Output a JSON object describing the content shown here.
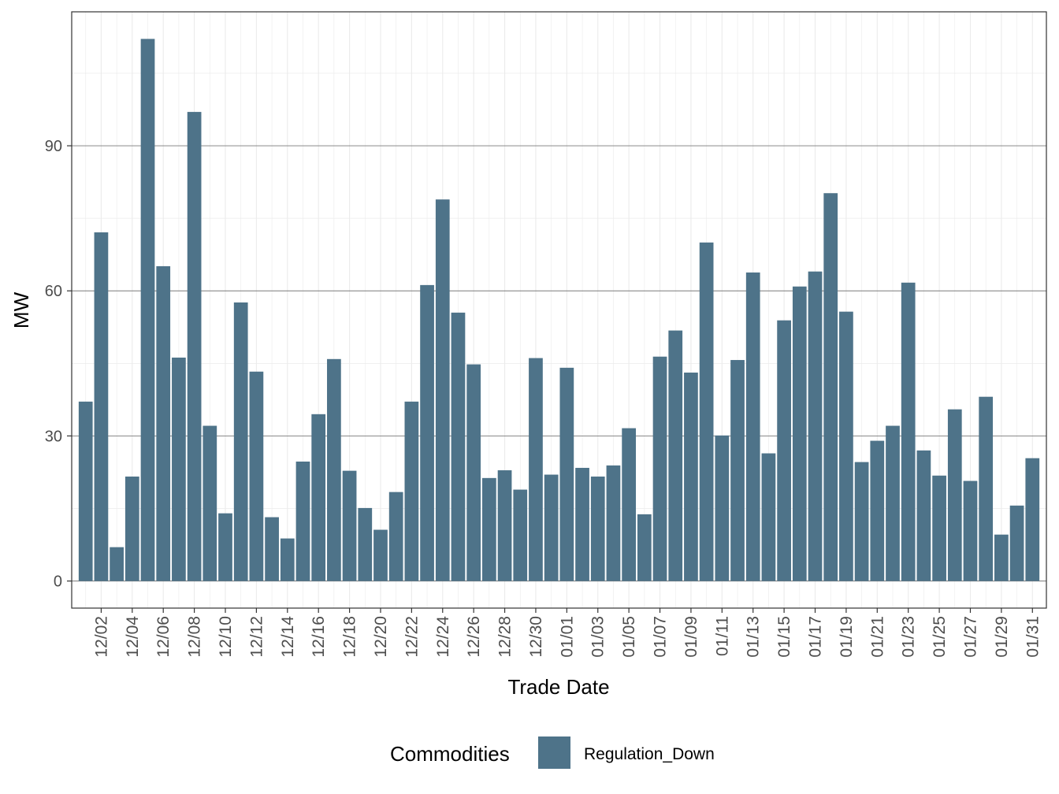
{
  "chart_data": {
    "type": "bar",
    "title": "",
    "xlabel": "Trade Date",
    "ylabel": "MW",
    "ylim": [
      -5.6,
      117.7
    ],
    "y_ticks": [
      0,
      30,
      60,
      90
    ],
    "grid": true,
    "legend_position": "bottom",
    "legend_title": "Commodities",
    "bar_color": "#4e7389",
    "x_tick_labels": [
      "12/02",
      "12/04",
      "12/06",
      "12/08",
      "12/10",
      "12/12",
      "12/14",
      "12/16",
      "12/18",
      "12/20",
      "12/22",
      "12/24",
      "12/26",
      "12/28",
      "12/30",
      "01/01",
      "01/03",
      "01/05",
      "01/07",
      "01/09",
      "01/11",
      "01/13",
      "01/15",
      "01/17",
      "01/19",
      "01/21",
      "01/23",
      "01/25",
      "01/27",
      "01/29",
      "01/31"
    ],
    "categories": [
      "12/01",
      "12/02",
      "12/03",
      "12/04",
      "12/05",
      "12/06",
      "12/07",
      "12/08",
      "12/09",
      "12/10",
      "12/11",
      "12/12",
      "12/13",
      "12/14",
      "12/15",
      "12/16",
      "12/17",
      "12/18",
      "12/19",
      "12/20",
      "12/21",
      "12/22",
      "12/23",
      "12/24",
      "12/25",
      "12/26",
      "12/27",
      "12/28",
      "12/29",
      "12/30",
      "12/31",
      "01/01",
      "01/02",
      "01/03",
      "01/04",
      "01/05",
      "01/06",
      "01/07",
      "01/08",
      "01/09",
      "01/10",
      "01/11",
      "01/12",
      "01/13",
      "01/14",
      "01/15",
      "01/16",
      "01/17",
      "01/18",
      "01/19",
      "01/20",
      "01/21",
      "01/22",
      "01/23",
      "01/24",
      "01/25",
      "01/26",
      "01/27",
      "01/28",
      "01/29",
      "01/30",
      "01/31"
    ],
    "series": [
      {
        "name": "Regulation_Down",
        "values": [
          37.1,
          72.1,
          7.0,
          21.6,
          112.1,
          65.1,
          46.2,
          97.0,
          32.1,
          14.0,
          57.6,
          43.3,
          13.2,
          8.8,
          24.7,
          34.5,
          45.9,
          22.8,
          15.1,
          10.6,
          18.4,
          37.1,
          61.2,
          78.9,
          55.5,
          44.8,
          21.3,
          22.9,
          18.9,
          46.1,
          22.0,
          44.1,
          23.4,
          21.6,
          23.9,
          31.6,
          13.8,
          46.4,
          51.8,
          43.1,
          70.0,
          30.1,
          45.7,
          63.8,
          26.4,
          53.9,
          60.9,
          64.0,
          80.2,
          55.7,
          24.6,
          29.0,
          32.1,
          61.7,
          27.0,
          21.8,
          35.5,
          20.7,
          38.1,
          9.6,
          15.6,
          25.4
        ]
      }
    ]
  }
}
